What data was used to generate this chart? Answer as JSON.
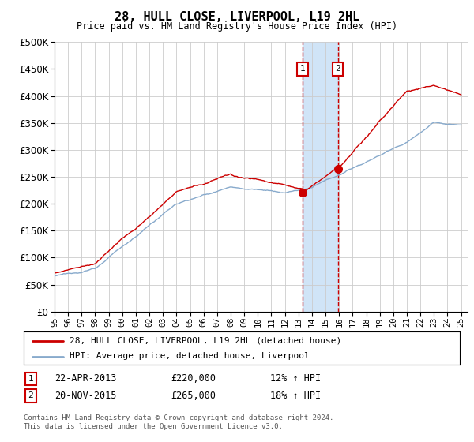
{
  "title": "28, HULL CLOSE, LIVERPOOL, L19 2HL",
  "subtitle": "Price paid vs. HM Land Registry's House Price Index (HPI)",
  "ytick_values": [
    0,
    50000,
    100000,
    150000,
    200000,
    250000,
    300000,
    350000,
    400000,
    450000,
    500000
  ],
  "xlim_start": 1995.0,
  "xlim_end": 2025.5,
  "ylim": [
    0,
    500000
  ],
  "marker1_x": 2013.31,
  "marker1_y": 220000,
  "marker2_x": 2015.9,
  "marker2_y": 265000,
  "shade_color": "#d0e4f7",
  "vline_color": "#cc0000",
  "red_line_color": "#cc0000",
  "blue_line_color": "#88aacc",
  "legend_label_red": "28, HULL CLOSE, LIVERPOOL, L19 2HL (detached house)",
  "legend_label_blue": "HPI: Average price, detached house, Liverpool",
  "table_row1": [
    "1",
    "22-APR-2013",
    "£220,000",
    "12% ↑ HPI"
  ],
  "table_row2": [
    "2",
    "20-NOV-2015",
    "£265,000",
    "18% ↑ HPI"
  ],
  "footnote": "Contains HM Land Registry data © Crown copyright and database right 2024.\nThis data is licensed under the Open Government Licence v3.0.",
  "grid_color": "#cccccc",
  "background_color": "#ffffff"
}
